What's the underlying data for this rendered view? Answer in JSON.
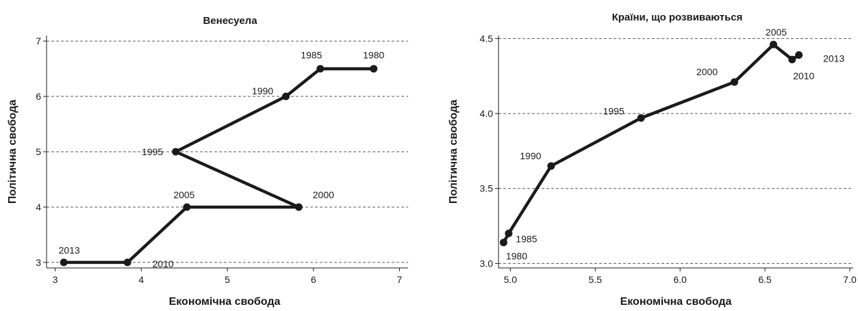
{
  "chart_data": [
    {
      "type": "line",
      "title": "Венесуела",
      "xlabel": "Економічна свобода",
      "ylabel": "Політична свобода",
      "xlim": [
        2.9,
        7.1
      ],
      "ylim": [
        2.9,
        7.1
      ],
      "xticks": [
        "3",
        "4",
        "5",
        "6",
        "7"
      ],
      "yticks": [
        "3",
        "4",
        "5",
        "6",
        "7"
      ],
      "grid": "horizontal dashed",
      "series": [
        {
          "points": [
            {
              "year": "1980",
              "x": 6.7,
              "y": 6.5
            },
            {
              "year": "1985",
              "x": 6.08,
              "y": 6.5
            },
            {
              "year": "1990",
              "x": 5.68,
              "y": 6.0
            },
            {
              "year": "1995",
              "x": 4.4,
              "y": 5.0
            },
            {
              "year": "2000",
              "x": 5.83,
              "y": 4.0
            },
            {
              "year": "2005",
              "x": 4.53,
              "y": 4.0
            },
            {
              "year": "2010",
              "x": 3.84,
              "y": 3.0
            },
            {
              "year": "2013",
              "x": 3.1,
              "y": 3.0
            }
          ]
        }
      ]
    },
    {
      "type": "line",
      "title": "Країни, що розвиваються",
      "xlabel": "Економічна свобода",
      "ylabel": "Політична свобода",
      "xlim": [
        4.93,
        7.02
      ],
      "ylim": [
        2.97,
        4.52
      ],
      "xticks": [
        "5.0",
        "5.5",
        "6.0",
        "6.5",
        "7.0"
      ],
      "yticks": [
        "3.0",
        "3.5",
        "4.0",
        "4.5"
      ],
      "grid": "horizontal dashed",
      "series": [
        {
          "points": [
            {
              "year": "1980",
              "x": 4.96,
              "y": 3.14
            },
            {
              "year": "1985",
              "x": 4.99,
              "y": 3.2
            },
            {
              "year": "1990",
              "x": 5.24,
              "y": 3.65
            },
            {
              "year": "1995",
              "x": 5.77,
              "y": 3.97
            },
            {
              "year": "2000",
              "x": 6.32,
              "y": 4.21
            },
            {
              "year": "2005",
              "x": 6.55,
              "y": 4.46
            },
            {
              "year": "2010",
              "x": 6.66,
              "y": 4.36
            },
            {
              "year": "2013",
              "x": 6.7,
              "y": 4.39
            }
          ]
        }
      ]
    }
  ]
}
